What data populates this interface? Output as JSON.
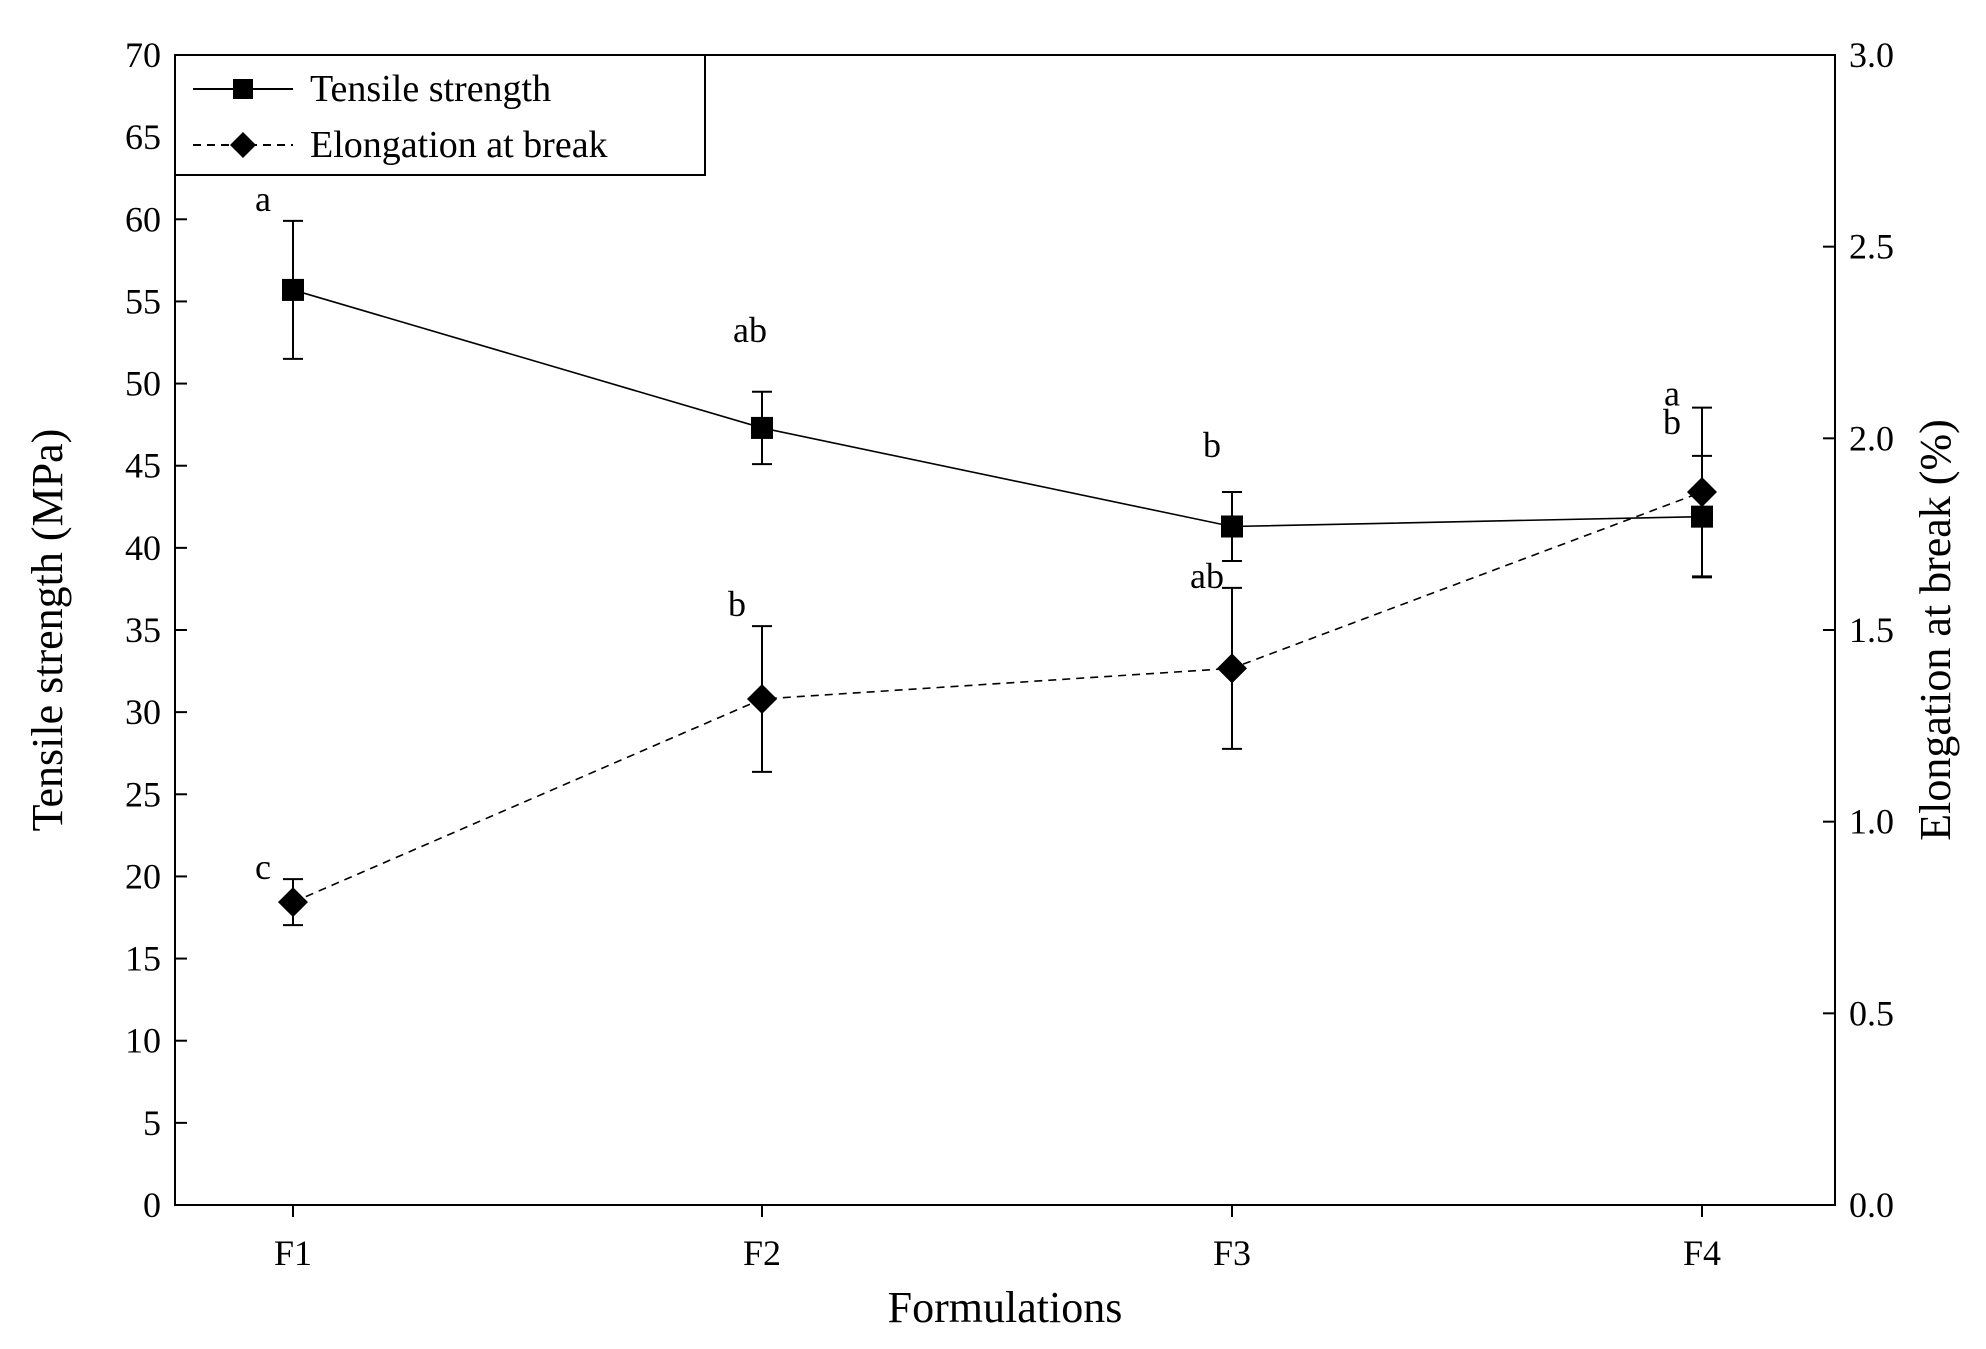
{
  "chart_data": {
    "type": "line",
    "categories": [
      "F1",
      "F2",
      "F3",
      "F4"
    ],
    "xlabel": "Formulations",
    "ylabel_left": "Tensile strength (MPa)",
    "ylabel_right": "Elongation at break (%)",
    "ylim_left": [
      0,
      70
    ],
    "ylim_right": [
      0.0,
      3.0
    ],
    "yticks_left": [
      "0",
      "5",
      "10",
      "15",
      "20",
      "25",
      "30",
      "35",
      "40",
      "45",
      "50",
      "55",
      "60",
      "65",
      "70"
    ],
    "yticks_right": [
      "0.0",
      "0.5",
      "1.0",
      "1.5",
      "2.0",
      "2.5",
      "3.0"
    ],
    "legend_position": "top-left",
    "grid": false,
    "series": [
      {
        "name": "Tensile strength",
        "axis": "left",
        "line_style": "solid",
        "marker": "square",
        "values": [
          55.7,
          47.3,
          41.3,
          41.9
        ],
        "errors": [
          4.2,
          2.2,
          2.1,
          3.7
        ],
        "letters": [
          "a",
          "ab",
          "b",
          "b"
        ]
      },
      {
        "name": "Elongation at break",
        "axis": "right",
        "line_style": "dashed",
        "marker": "diamond",
        "values": [
          0.79,
          1.32,
          1.4,
          1.86
        ],
        "errors": [
          0.06,
          0.19,
          0.21,
          0.22
        ],
        "letters": [
          "c",
          "b",
          "ab",
          "a"
        ]
      }
    ]
  }
}
